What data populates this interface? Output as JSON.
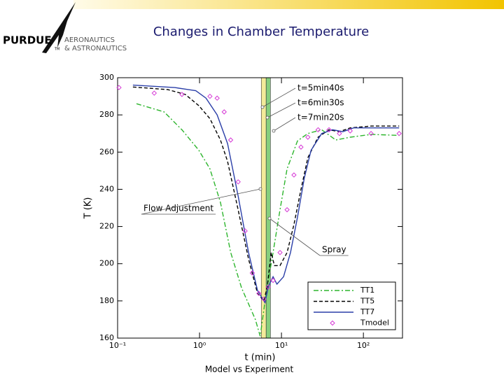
{
  "logo": {
    "name": "PURDUE",
    "mark": "TM",
    "dept_line1": "AERONAUTICS",
    "dept_line2": "& ASTRONAUTICS"
  },
  "caption": "Model vs Experiment",
  "chart_data": {
    "type": "line",
    "title": "Changes in Chamber Temperature",
    "x_label": "t (min)",
    "y_label": "T (K)",
    "xscale": "log",
    "xlim": [
      0.1,
      300
    ],
    "xticks": [
      {
        "value": 0.1,
        "label": "10⁻¹"
      },
      {
        "value": 1,
        "label": "10⁰"
      },
      {
        "value": 10,
        "label": "10¹"
      },
      {
        "value": 100,
        "label": "10²"
      }
    ],
    "ylim": [
      160,
      300
    ],
    "yticks": [
      160,
      180,
      200,
      220,
      240,
      260,
      280,
      300
    ],
    "legend": "lower right",
    "bands": [
      {
        "from": 5.67,
        "to": 6.5,
        "color": "#f3eb9a"
      },
      {
        "from": 6.5,
        "to": 7.33,
        "color": "#86cf7e"
      }
    ],
    "annotations": [
      "t=5min40s",
      "t=6min30s",
      "t=7min20s",
      "Flow Adjustment",
      "Spray"
    ],
    "series": [
      {
        "name": "TT1",
        "color": "#2db52d",
        "style": "dashdot",
        "x": [
          0.17,
          0.37,
          0.61,
          0.98,
          1.34,
          1.8,
          2.4,
          3.26,
          4.8,
          5.5,
          6.5,
          7.9,
          9.6,
          11.7,
          15.7,
          21,
          31,
          46,
          69,
          124,
          273
        ],
        "values": [
          286,
          281.6,
          272,
          261,
          251,
          233,
          206,
          187,
          170,
          161,
          184,
          206,
          229,
          251,
          266,
          270,
          272,
          266.5,
          268,
          269.5,
          269
        ]
      },
      {
        "name": "TT5",
        "color": "#000000",
        "style": "dashed",
        "x": [
          0.154,
          0.41,
          0.67,
          0.98,
          1.34,
          1.8,
          2.2,
          2.96,
          3.97,
          5.1,
          6.1,
          6.7,
          7.5,
          8.2,
          9.6,
          11.7,
          14.2,
          17.3,
          21,
          28,
          38,
          51,
          69,
          124,
          273
        ],
        "values": [
          295,
          293.6,
          291,
          285,
          278,
          266.5,
          255,
          229,
          202.5,
          184,
          180,
          187.5,
          206,
          199,
          199,
          206,
          221,
          240,
          257,
          268,
          272,
          271,
          273,
          274,
          274
        ]
      },
      {
        "name": "TT7",
        "color": "#2b3fa8",
        "style": "solid",
        "x": [
          0.154,
          0.5,
          0.9,
          1.2,
          1.64,
          2.2,
          2.96,
          3.97,
          5.1,
          6.3,
          6.9,
          7.9,
          8.8,
          10.6,
          12.9,
          15.7,
          19,
          23,
          31,
          42,
          56,
          76,
          124,
          273
        ],
        "values": [
          296,
          294.7,
          293,
          289,
          280,
          264.6,
          236.4,
          206,
          185.6,
          179,
          187.5,
          193,
          189,
          193,
          206,
          225,
          246,
          261,
          270,
          272,
          271,
          273,
          273,
          273
        ]
      },
      {
        "name": "Tmodel",
        "color": "#d63ad6",
        "style": "marker",
        "x": [
          0.104,
          0.28,
          0.61,
          1.34,
          1.64,
          2.0,
          2.4,
          2.96,
          3.6,
          4.4,
          5.3,
          6.1,
          6.9,
          7.9,
          9.6,
          11.7,
          14.2,
          17.3,
          21,
          28,
          38,
          51,
          69,
          124,
          273
        ],
        "values": [
          294.7,
          291.7,
          291,
          290,
          289,
          281.6,
          266.5,
          244,
          217.6,
          195,
          184,
          181,
          187.5,
          191,
          206,
          229,
          247.7,
          262.7,
          268,
          272,
          272,
          270,
          271.4,
          270,
          270
        ]
      }
    ]
  }
}
